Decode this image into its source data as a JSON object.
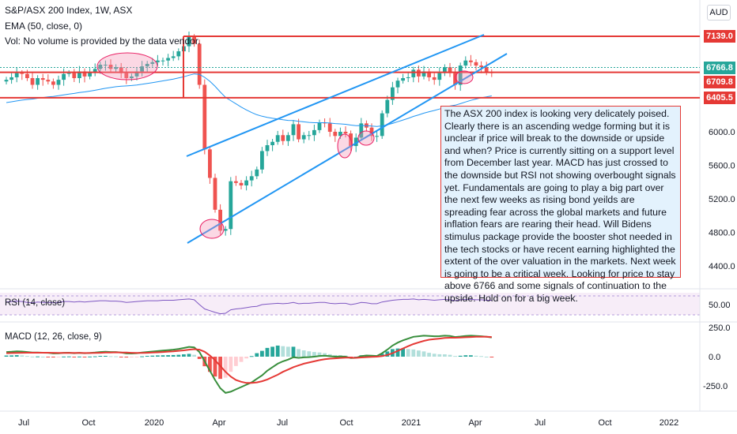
{
  "header": {
    "title": "S&P/ASX 200 Index, 1W, ASX",
    "ema": "EMA (50, close, 0)",
    "vol": "Vol: No volume is provided by the data vendor."
  },
  "currency": "AUD",
  "price_tags": [
    {
      "label": "7139.0",
      "color": "#e53935"
    },
    {
      "label": "6766.8",
      "color": "#26a69a"
    },
    {
      "label": "6709.8",
      "color": "#e53935"
    },
    {
      "label": "6405.5",
      "color": "#e53935"
    }
  ],
  "note": "The ASX 200 index is looking very delicately poised. Clearly there is an ascending wedge forming but it is unclear if price will break to the downside or upside and when? Price is currently sitting on a support level from December last year. MACD has just crossed to the downside but RSI not showing overbought signals yet. Fundamentals are going to play a big part over the next few weeks as rising bond yeilds are spreading fear across the global markets and future inflation fears are rearing their head. Will Bidens stimulus package provide the booster shot needed in the tech stocks or have recent earning highlighted the extent of the over valuation in the markets. Next week is going to be a critical week. Looking for price to stay above 6766 and some signals of continuation to the upside. Hold on for a big week.",
  "rsi_label": "RSI (14, close)",
  "macd_label": "MACD (12, 26, close, 9)",
  "chart_data": {
    "type": "candlestick",
    "y_ticks": [
      4400,
      4800,
      5200,
      5600,
      6000
    ],
    "rsi_ticks": [
      50
    ],
    "macd_ticks": [
      250,
      0,
      -250
    ],
    "x_ticks": [
      "Jul",
      "Oct",
      "2020",
      "Apr",
      "Jul",
      "Oct",
      "2021",
      "Apr",
      "Jul",
      "Oct",
      "2022"
    ],
    "horizontal_levels": [
      7139.0,
      6709.8,
      6405.5
    ],
    "last_price": 6766.8,
    "closes": [
      6620,
      6650,
      6700,
      6690,
      6640,
      6560,
      6640,
      6620,
      6600,
      6560,
      6620,
      6690,
      6700,
      6640,
      6720,
      6660,
      6710,
      6750,
      6800,
      6800,
      6750,
      6770,
      6700,
      6640,
      6660,
      6720,
      6780,
      6810,
      6830,
      6850,
      6850,
      6880,
      6900,
      6960,
      7020,
      7130,
      7050,
      6560,
      5790,
      5450,
      5070,
      4820,
      4840,
      5410,
      5390,
      5360,
      5420,
      5470,
      5550,
      5770,
      5840,
      5880,
      5960,
      5890,
      5960,
      6090,
      5910,
      5960,
      5960,
      6020,
      6110,
      6100,
      6000,
      5950,
      6000,
      5980,
      5830,
      5930,
      6100,
      6050,
      5950,
      5950,
      6220,
      6380,
      6530,
      6610,
      6640,
      6650,
      6740,
      6660,
      6720,
      6650,
      6620,
      6700,
      6770,
      6700,
      6560,
      6790,
      6850,
      6830,
      6790,
      6770,
      6710,
      6700
    ],
    "rsi": [
      56,
      57,
      58,
      57,
      55,
      54,
      56,
      55,
      55,
      54,
      55,
      57,
      57,
      56,
      57,
      56,
      57,
      58,
      59,
      59,
      58,
      58,
      57,
      55,
      56,
      57,
      58,
      59,
      59,
      59,
      60,
      60,
      60,
      61,
      62,
      63,
      61,
      50,
      40,
      36,
      32,
      29,
      30,
      38,
      40,
      41,
      43,
      45,
      46,
      50,
      51,
      52,
      53,
      52,
      53,
      55,
      52,
      53,
      53,
      54,
      55,
      55,
      53,
      52,
      53,
      53,
      50,
      52,
      55,
      54,
      52,
      52,
      56,
      58,
      60,
      61,
      62,
      62,
      63,
      61,
      62,
      61,
      60,
      61,
      62,
      61,
      59,
      61,
      62,
      62,
      61,
      61,
      60,
      60
    ],
    "macd_line": [
      40,
      42,
      45,
      44,
      40,
      35,
      36,
      34,
      33,
      28,
      29,
      33,
      34,
      30,
      33,
      30,
      32,
      35,
      40,
      42,
      40,
      40,
      35,
      28,
      27,
      30,
      35,
      40,
      44,
      48,
      52,
      56,
      60,
      66,
      74,
      84,
      80,
      40,
      -40,
      -120,
      -200,
      -270,
      -310,
      -300,
      -280,
      -260,
      -240,
      -220,
      -190,
      -160,
      -120,
      -90,
      -60,
      -40,
      -25,
      -5,
      -10,
      -6,
      -4,
      0,
      6,
      8,
      4,
      0,
      2,
      0,
      -12,
      -10,
      5,
      10,
      8,
      6,
      30,
      60,
      95,
      120,
      140,
      155,
      170,
      175,
      180,
      178,
      175,
      176,
      180,
      178,
      168,
      172,
      178,
      180,
      178,
      175,
      170,
      165
    ],
    "signal_line": [
      30,
      31,
      32,
      33,
      34,
      34,
      34,
      34,
      34,
      33,
      32,
      32,
      32,
      32,
      32,
      31,
      31,
      32,
      33,
      35,
      36,
      37,
      36,
      35,
      33,
      32,
      32,
      33,
      35,
      37,
      40,
      43,
      46,
      50,
      54,
      60,
      64,
      60,
      42,
      10,
      -30,
      -80,
      -130,
      -170,
      -200,
      -215,
      -225,
      -225,
      -220,
      -210,
      -195,
      -175,
      -155,
      -130,
      -110,
      -90,
      -75,
      -60,
      -50,
      -40,
      -30,
      -22,
      -17,
      -14,
      -11,
      -9,
      -9,
      -10,
      -7,
      -4,
      -2,
      0,
      5,
      15,
      30,
      50,
      70,
      90,
      108,
      122,
      135,
      145,
      150,
      155,
      160,
      162,
      162,
      164,
      166,
      168,
      170,
      170,
      170,
      168
    ],
    "histogram": [
      10,
      11,
      13,
      11,
      6,
      1,
      2,
      0,
      -1,
      -5,
      -3,
      1,
      2,
      -2,
      1,
      -1,
      1,
      3,
      7,
      7,
      4,
      3,
      -1,
      -7,
      -6,
      -2,
      3,
      7,
      9,
      11,
      12,
      13,
      14,
      16,
      20,
      24,
      16,
      -20,
      -82,
      -130,
      -170,
      -190,
      -180,
      -130,
      -80,
      -45,
      -15,
      5,
      30,
      50,
      75,
      85,
      95,
      90,
      85,
      85,
      65,
      54,
      46,
      40,
      36,
      30,
      21,
      14,
      13,
      9,
      -3,
      0,
      12,
      14,
      10,
      6,
      25,
      45,
      65,
      70,
      70,
      65,
      62,
      53,
      45,
      33,
      25,
      21,
      20,
      16,
      6,
      8,
      12,
      12,
      8,
      5,
      0,
      -3
    ]
  }
}
